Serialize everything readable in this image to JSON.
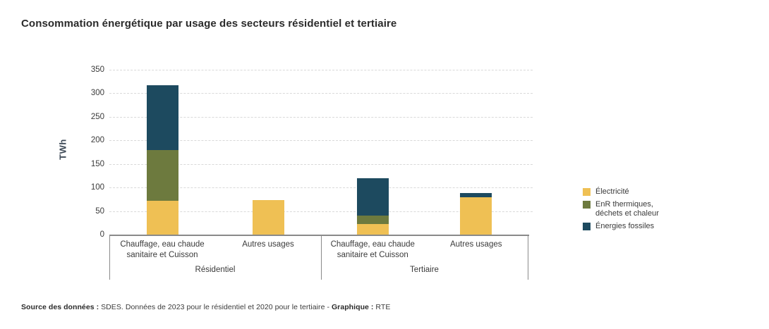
{
  "title": "Consommation énergétique par usage des secteurs résidentiel et tertiaire",
  "chart_data": {
    "type": "bar",
    "stacked": true,
    "title": "Consommation énergétique par usage des secteurs résidentiel et tertiaire",
    "ylabel": "TWh",
    "units": "TWh",
    "ylim": [
      0,
      350
    ],
    "yticks": [
      0,
      50,
      100,
      150,
      200,
      250,
      300,
      350
    ],
    "grid": "horizontal-dashed",
    "legend_position": "right",
    "groups": [
      {
        "label": "Résidentiel",
        "categories": [
          "Chauffage, eau chaude sanitaire et Cuisson",
          "Autres usages"
        ]
      },
      {
        "label": "Tertiaire",
        "categories": [
          "Chauffage, eau chaude sanitaire et Cuisson",
          "Autres usages"
        ]
      }
    ],
    "series": [
      {
        "name": "Électricité",
        "color": "#EFC054",
        "values": [
          72,
          74,
          23,
          80
        ]
      },
      {
        "name": "EnR thermiques, déchets et chaleur",
        "color": "#6D7A3E",
        "values": [
          108,
          0,
          17,
          0
        ]
      },
      {
        "name": "Énergies fossiles",
        "color": "#1D4A5F",
        "values": [
          137,
          0,
          80,
          8
        ]
      }
    ]
  },
  "legend": {
    "items": [
      {
        "label": "Électricité",
        "color": "#EFC054"
      },
      {
        "label": "EnR thermiques,\ndéchets et chaleur",
        "color": "#6D7A3E"
      },
      {
        "label": "Énergies fossiles",
        "color": "#1D4A5F"
      }
    ]
  },
  "source": {
    "label": "Source des données :",
    "text": " SDES. Données de 2023 pour le résidentiel et 2020 pour le tertiaire - ",
    "graph_label": "Graphique :",
    "graph_text": " RTE"
  }
}
